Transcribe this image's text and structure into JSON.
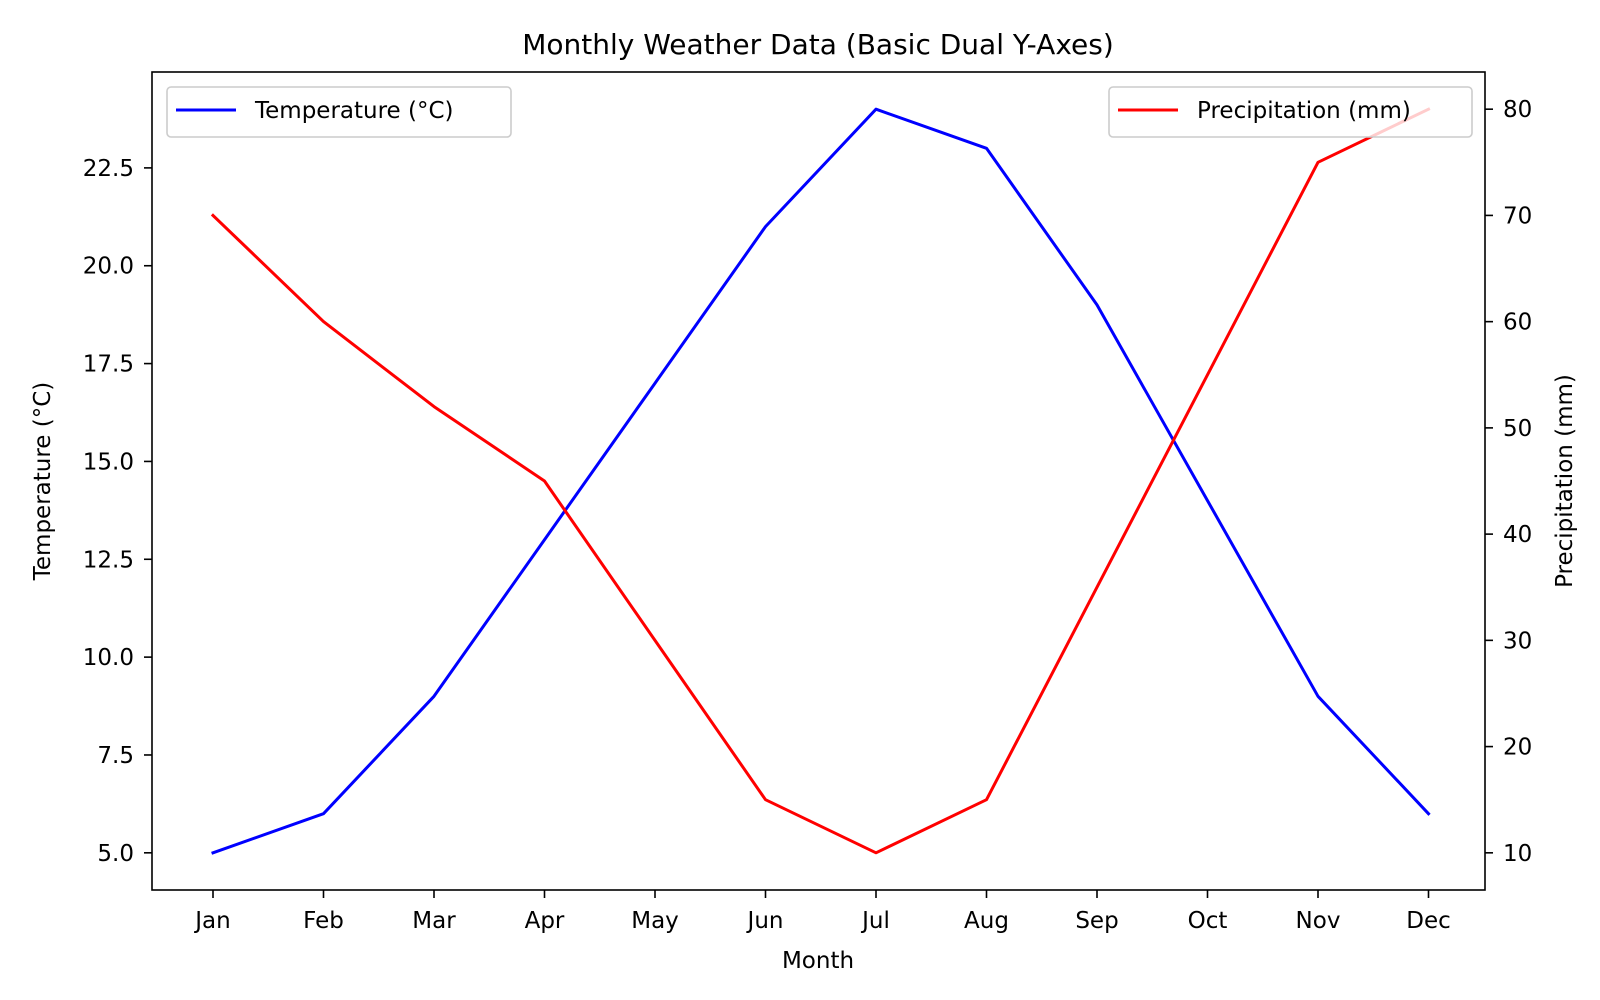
{
  "chart_data": {
    "type": "line",
    "title": "Monthly Weather Data (Basic Dual Y-Axes)",
    "xlabel": "Month",
    "ylabel_left": "Temperature (°C)",
    "ylabel_right": "Precipitation (mm)",
    "categories": [
      "Jan",
      "Feb",
      "Mar",
      "Apr",
      "May",
      "Jun",
      "Jul",
      "Aug",
      "Sep",
      "Oct",
      "Nov",
      "Dec"
    ],
    "ylim_left": [
      4.05,
      24.95
    ],
    "ylim_right": [
      6.5,
      83.5
    ],
    "yticks_left": [
      "5.0",
      "7.5",
      "10.0",
      "12.5",
      "15.0",
      "17.5",
      "20.0",
      "22.5"
    ],
    "yticks_right": [
      "10",
      "20",
      "30",
      "40",
      "50",
      "60",
      "70",
      "80"
    ],
    "grid": false,
    "series": [
      {
        "name": "Temperature (°C)",
        "axis": "left",
        "color": "#0000ff",
        "legend_position": "top-left",
        "values": [
          5,
          6,
          9,
          13,
          17,
          21,
          24,
          23,
          19,
          14,
          9,
          6
        ]
      },
      {
        "name": "Precipitation (mm)",
        "axis": "right",
        "color": "#ff0000",
        "legend_position": "top-right",
        "values": [
          70,
          60,
          52,
          45,
          30,
          15,
          10,
          15,
          35,
          55,
          75,
          80
        ]
      }
    ]
  }
}
